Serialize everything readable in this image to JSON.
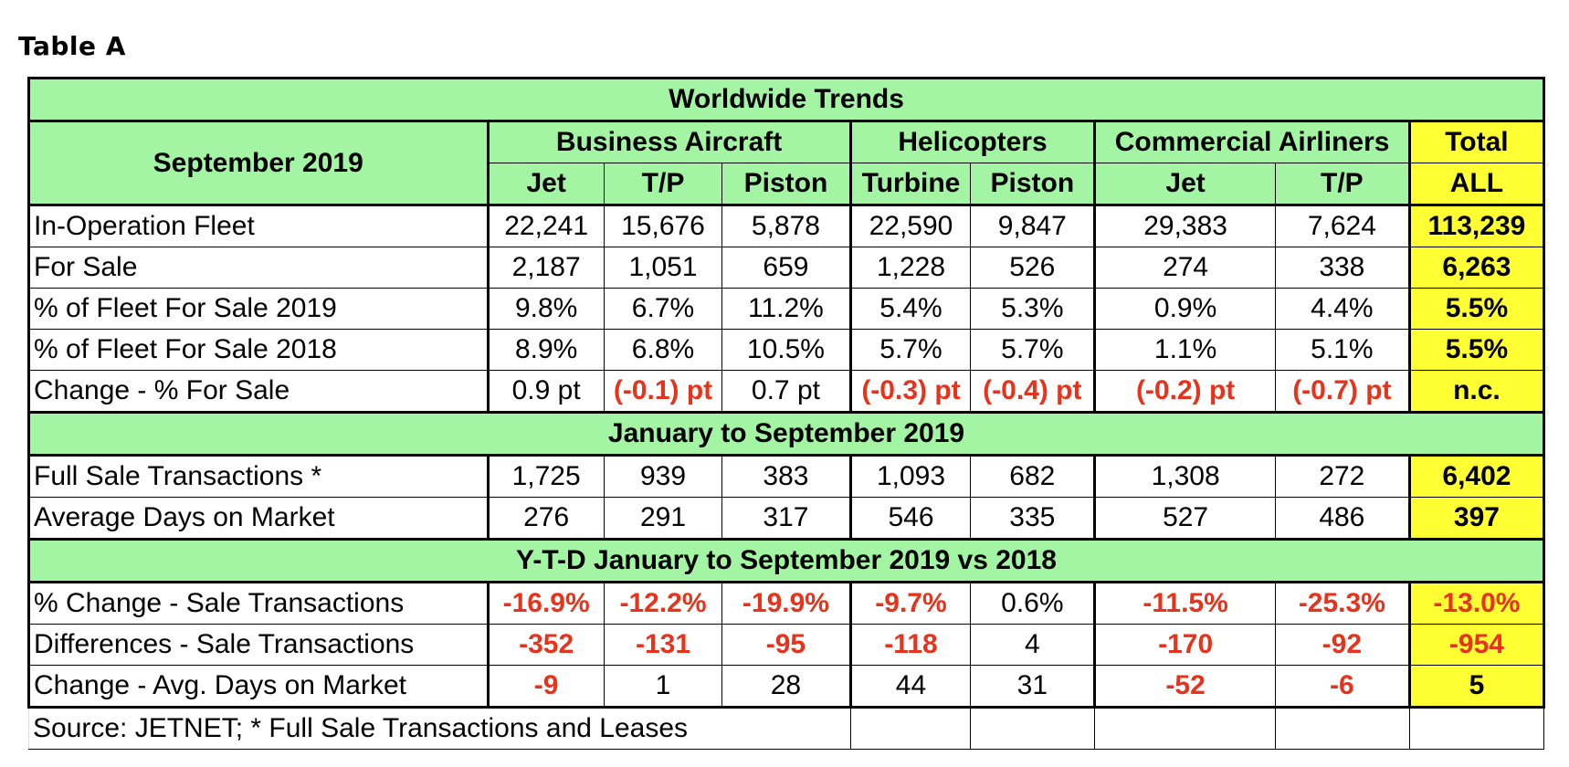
{
  "caption": "Table A",
  "title": "Worldwide Trends",
  "period_label": "September 2019",
  "groups": {
    "business": "Business Aircraft",
    "helicopters": "Helicopters",
    "commercial": "Commercial Airliners",
    "total": "Total"
  },
  "subcolumns": [
    "Jet",
    "T/P",
    "Piston",
    "Turbine",
    "Piston",
    "Jet",
    "T/P",
    "ALL"
  ],
  "section1_rows": [
    {
      "label": "In-Operation Fleet",
      "cells": [
        "22,241",
        "15,676",
        "5,878",
        "22,590",
        "9,847",
        "29,383",
        "7,624",
        "113,239"
      ],
      "neg": [
        false,
        false,
        false,
        false,
        false,
        false,
        false,
        false
      ]
    },
    {
      "label": "For Sale",
      "cells": [
        "2,187",
        "1,051",
        "659",
        "1,228",
        "526",
        "274",
        "338",
        "6,263"
      ],
      "neg": [
        false,
        false,
        false,
        false,
        false,
        false,
        false,
        false
      ]
    },
    {
      "label": "% of Fleet For Sale 2019",
      "cells": [
        "9.8%",
        "6.7%",
        "11.2%",
        "5.4%",
        "5.3%",
        "0.9%",
        "4.4%",
        "5.5%"
      ],
      "neg": [
        false,
        false,
        false,
        false,
        false,
        false,
        false,
        false
      ]
    },
    {
      "label": "% of Fleet For Sale 2018",
      "cells": [
        "8.9%",
        "6.8%",
        "10.5%",
        "5.7%",
        "5.7%",
        "1.1%",
        "5.1%",
        "5.5%"
      ],
      "neg": [
        false,
        false,
        false,
        false,
        false,
        false,
        false,
        false
      ]
    },
    {
      "label": "Change - % For Sale",
      "cells": [
        "0.9 pt",
        "(-0.1) pt",
        "0.7 pt",
        "(-0.3) pt",
        "(-0.4) pt",
        "(-0.2) pt",
        "(-0.7) pt",
        "n.c."
      ],
      "neg": [
        false,
        true,
        false,
        true,
        true,
        true,
        true,
        false
      ]
    }
  ],
  "section2_title": "January to September 2019",
  "section2_rows": [
    {
      "label": "Full Sale Transactions *",
      "cells": [
        "1,725",
        "939",
        "383",
        "1,093",
        "682",
        "1,308",
        "272",
        "6,402"
      ],
      "neg": [
        false,
        false,
        false,
        false,
        false,
        false,
        false,
        false
      ]
    },
    {
      "label": "Average Days on Market",
      "cells": [
        "276",
        "291",
        "317",
        "546",
        "335",
        "527",
        "486",
        "397"
      ],
      "neg": [
        false,
        false,
        false,
        false,
        false,
        false,
        false,
        false
      ]
    }
  ],
  "section3_title": "Y-T-D January to September 2019 vs 2018",
  "section3_rows": [
    {
      "label": "% Change  - Sale Transactions",
      "cells": [
        "-16.9%",
        "-12.2%",
        "-19.9%",
        "-9.7%",
        "0.6%",
        "-11.5%",
        "-25.3%",
        "-13.0%"
      ],
      "neg": [
        true,
        true,
        true,
        true,
        false,
        true,
        true,
        true
      ]
    },
    {
      "label": "Differences - Sale Transactions",
      "cells": [
        "-352",
        "-131",
        "-95",
        "-118",
        "4",
        "-170",
        "-92",
        "-954"
      ],
      "neg": [
        true,
        true,
        true,
        true,
        false,
        true,
        true,
        true
      ]
    },
    {
      "label": "Change -  Avg. Days on Market",
      "cells": [
        "-9",
        "1",
        "28",
        "44",
        "31",
        "-52",
        "-6",
        "5"
      ],
      "neg": [
        true,
        false,
        false,
        false,
        false,
        true,
        true,
        false
      ]
    }
  ],
  "source_note": "Source: JETNET; * Full Sale Transactions and Leases"
}
